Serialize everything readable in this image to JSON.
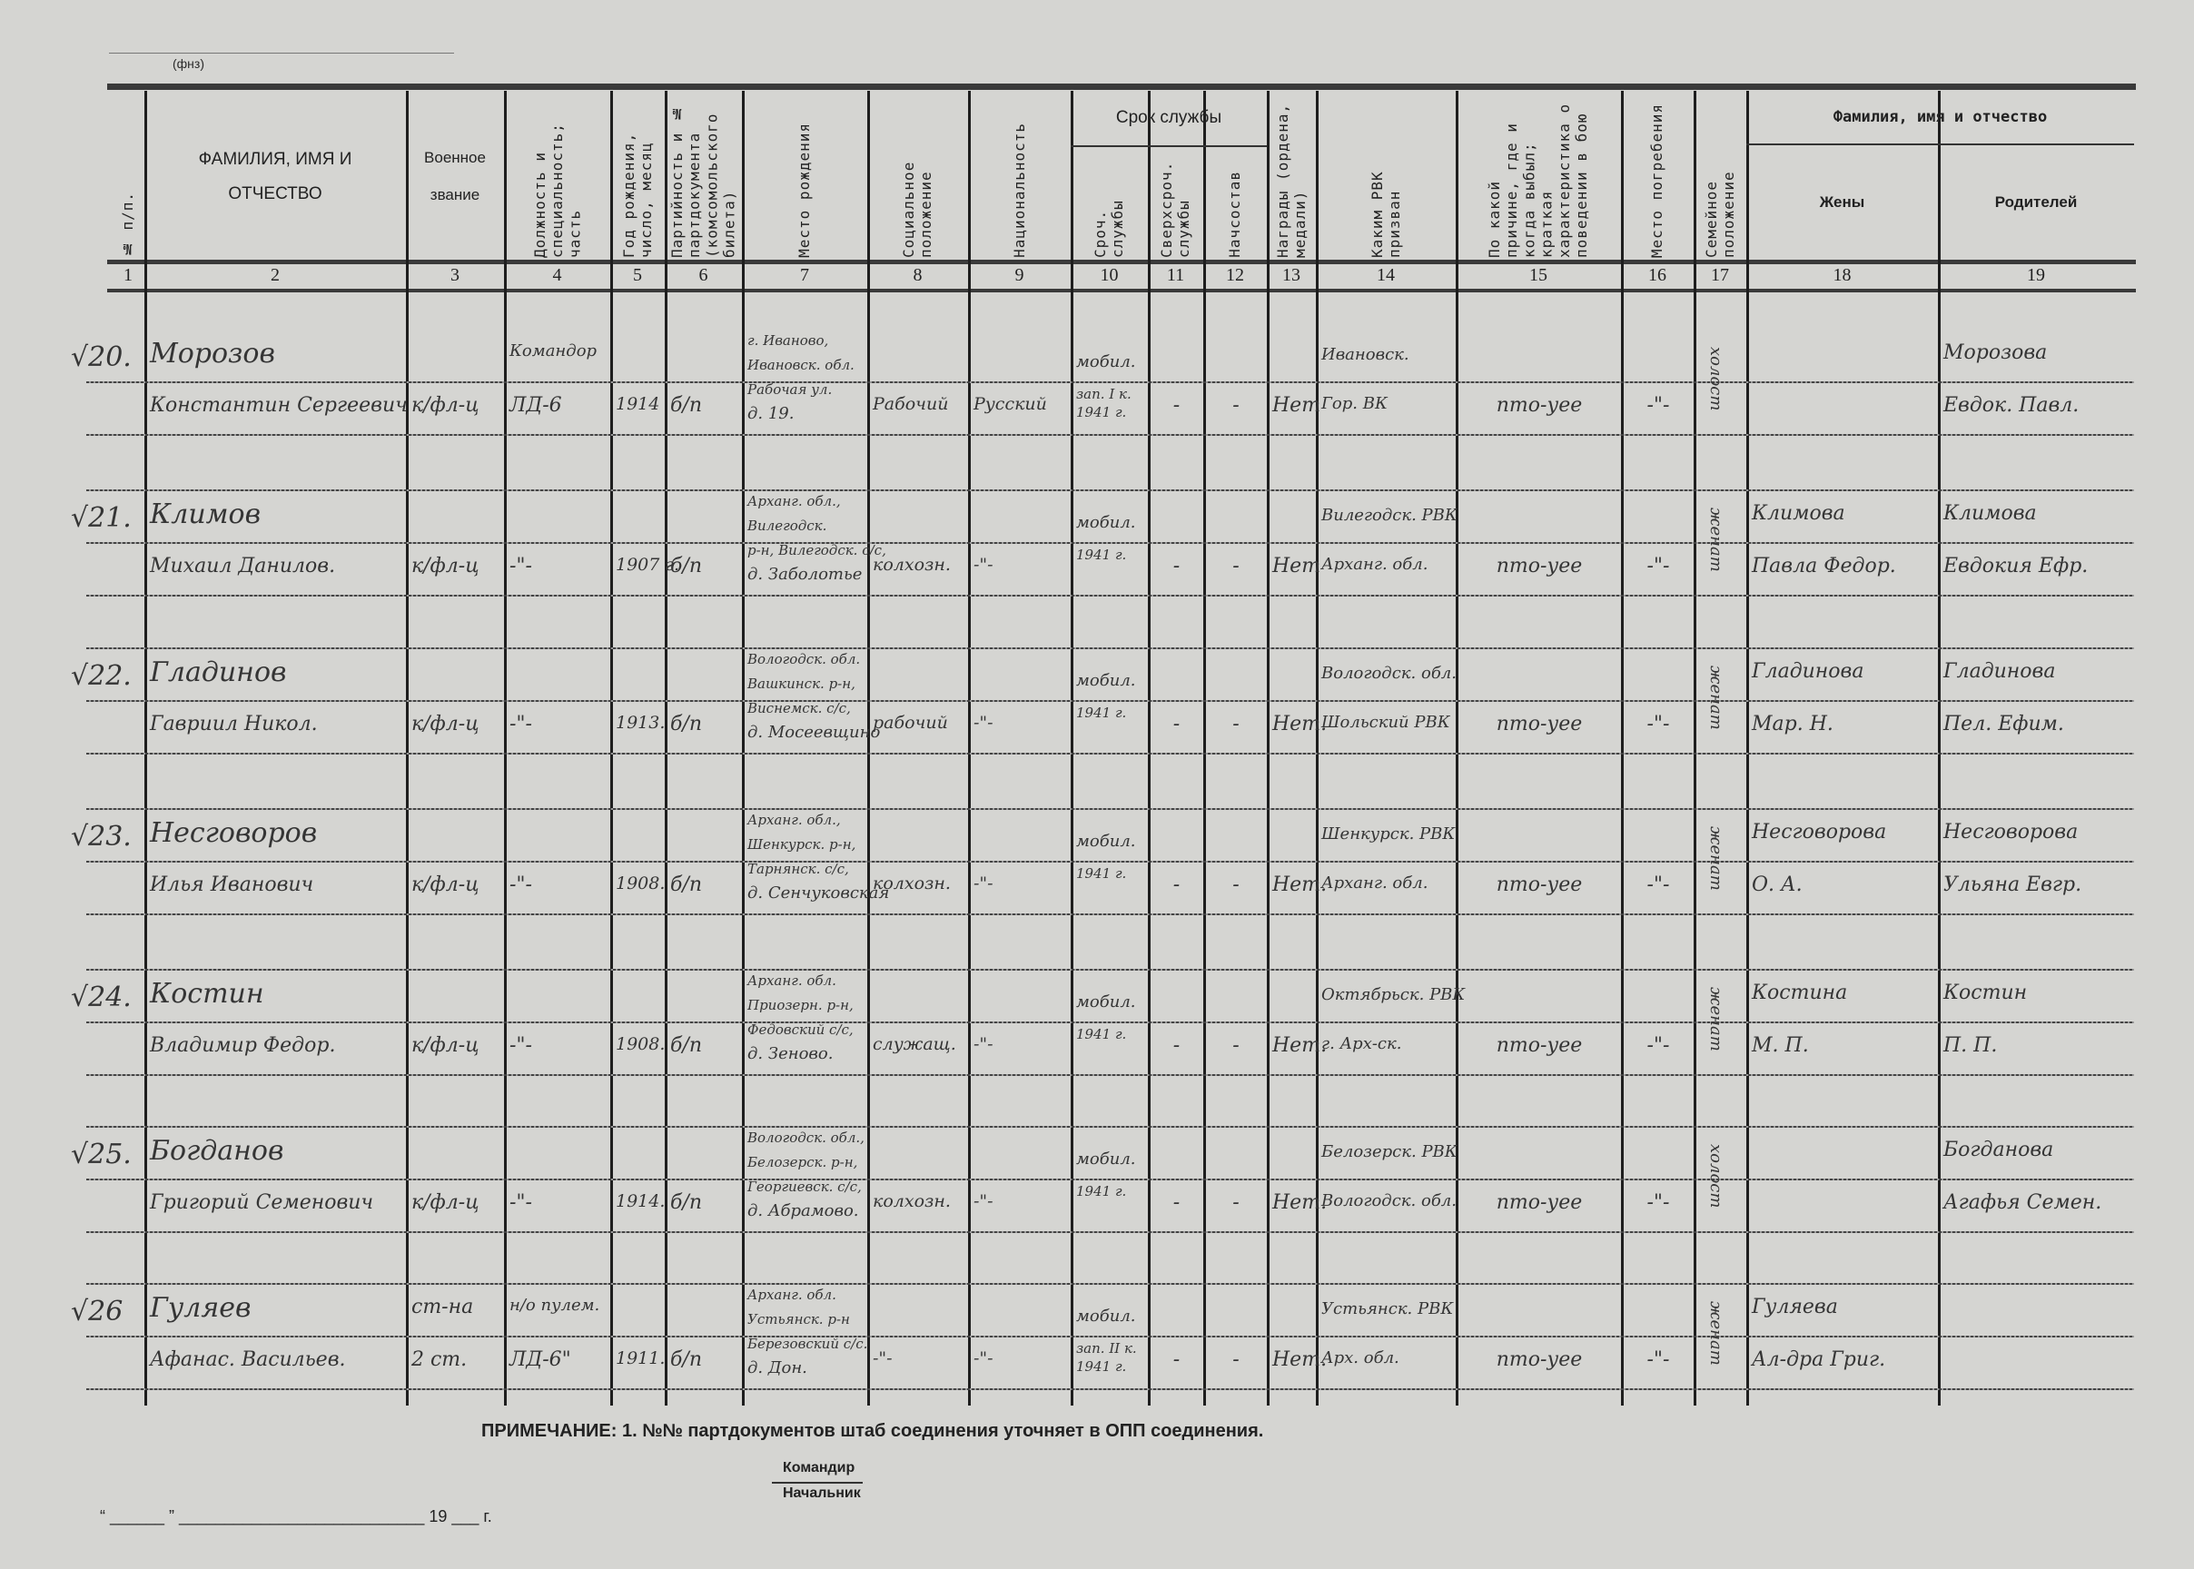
{
  "form": {
    "code": "(фнз)"
  },
  "headers": {
    "c1": "№ п/п.",
    "c2": "ФАМИЛИЯ, ИМЯ И ОТЧЕСТВО",
    "c3": "Военное звание",
    "c4": "Должность и специальность; часть",
    "c5": "Год рождения, число, месяц",
    "c6": "Партийность и № партдокумента (комсомольского билета)",
    "c7": "Место рождения",
    "c8": "Социальное положение",
    "c9": "Национальность",
    "service_group": "Срок службы",
    "c10": "Сроч. службы",
    "c11": "Сверхсроч. службы",
    "c12": "Начсостав",
    "c13": "Награды (ордена, медали)",
    "c14": "Каким РВК призван",
    "c15": "По какой причине, где и когда выбыл; краткая характеристика о поведении в бою",
    "c16": "Место погребения",
    "c17": "Семейное положение",
    "family_group": "Фамилия, имя и отчество",
    "c18": "Жены",
    "c19": "Родителей",
    "numbers": [
      "1",
      "2",
      "3",
      "4",
      "5",
      "6",
      "7",
      "8",
      "9",
      "10",
      "11",
      "12",
      "13",
      "14",
      "15",
      "16",
      "17",
      "18",
      "19"
    ]
  },
  "entries": [
    {
      "num": "√20.",
      "surname": "Морозов",
      "given": "Константин Сергеевич",
      "rank": [
        "",
        "к/фл-ц"
      ],
      "position": [
        "Командор",
        "ЛД-6"
      ],
      "year": "1914",
      "party": "б/п",
      "birthplace": [
        "г. Иваново,",
        "Ивановск. обл.",
        "Рабочая ул.",
        "д. 19."
      ],
      "social": "Рабочий",
      "nationality": "Русский",
      "service": [
        "мобил.",
        "зап. I к. 1941 г."
      ],
      "extended": "-",
      "command": "-",
      "awards": "Нет",
      "rvk": [
        "Ивановск.",
        "Гор. ВК"
      ],
      "reason": "пто-уее",
      "burial": "-\"-",
      "family": "холост",
      "wife": [
        "",
        ""
      ],
      "parents": [
        "Морозова",
        "Евдок. Павл."
      ]
    },
    {
      "num": "√21.",
      "surname": "Климов",
      "given": "Михаил Данилов.",
      "rank": [
        "",
        "к/фл-ц"
      ],
      "position": [
        "",
        "-\"-"
      ],
      "year": "1907 г.",
      "party": "б/п",
      "birthplace": [
        "Арханг. обл.,",
        "Вилегодск.",
        "р-н, Вилегодск. с/с,",
        "д. Заболотье"
      ],
      "social": "колхозн.",
      "nationality": "-\"-",
      "service": [
        "мобил.",
        "1941 г."
      ],
      "extended": "-",
      "command": "-",
      "awards": "Нет",
      "rvk": [
        "Вилегодск. РВК",
        "Арханг. обл."
      ],
      "reason": "пто-уее",
      "burial": "-\"-",
      "family": "женат",
      "wife": [
        "Климова",
        "Павла Федор."
      ],
      "parents": [
        "Климова",
        "Евдокия Ефр."
      ]
    },
    {
      "num": "√22.",
      "surname": "Гладинов",
      "given": "Гавриил Никол.",
      "rank": [
        "",
        "к/фл-ц"
      ],
      "position": [
        "",
        "-\"-"
      ],
      "year": "1913.",
      "party": "б/п",
      "birthplace": [
        "Вологодск. обл.",
        "Вашкинск. р-н,",
        "Виснемск. с/с,",
        "д. Мосеевщино"
      ],
      "social": "рабочий",
      "nationality": "-\"-",
      "service": [
        "мобил.",
        "1941 г."
      ],
      "extended": "-",
      "command": "-",
      "awards": "Нет.",
      "rvk": [
        "Вологодск. обл.",
        "Шольский РВК"
      ],
      "reason": "пто-уее",
      "burial": "-\"-",
      "family": "женат",
      "wife": [
        "Гладинова",
        "Мар. Н."
      ],
      "parents": [
        "Гладинова",
        "Пел. Ефим."
      ]
    },
    {
      "num": "√23.",
      "surname": "Несговоров",
      "given": "Илья Иванович",
      "rank": [
        "",
        "к/фл-ц"
      ],
      "position": [
        "",
        "-\"-"
      ],
      "year": "1908.",
      "party": "б/п",
      "birthplace": [
        "Арханг. обл.,",
        "Шенкурск. р-н,",
        "Тарнянск. с/с,",
        "д. Сенчуковская"
      ],
      "social": "колхозн.",
      "nationality": "-\"-",
      "service": [
        "мобил.",
        "1941 г."
      ],
      "extended": "-",
      "command": "-",
      "awards": "Нет.",
      "rvk": [
        "Шенкурск. РВК",
        "Арханг. обл."
      ],
      "reason": "пто-уее",
      "burial": "-\"-",
      "family": "женат",
      "wife": [
        "Несговорова",
        "О. А."
      ],
      "parents": [
        "Несговорова",
        "Ульяна Евгр."
      ]
    },
    {
      "num": "√24.",
      "surname": "Костин",
      "given": "Владимир Федор.",
      "rank": [
        "",
        "к/фл-ц"
      ],
      "position": [
        "",
        "-\"-"
      ],
      "year": "1908.",
      "party": "б/п",
      "birthplace": [
        "Арханг. обл.",
        "Приозерн. р-н,",
        "Федовский с/с,",
        "д. Зеново."
      ],
      "social": "служащ.",
      "nationality": "-\"-",
      "service": [
        "мобил.",
        "1941 г."
      ],
      "extended": "-",
      "command": "-",
      "awards": "Нет.",
      "rvk": [
        "Октябрьск. РВК",
        "г. Арх-ск."
      ],
      "reason": "пто-уее",
      "burial": "-\"-",
      "family": "женат",
      "wife": [
        "Костина",
        "М. П."
      ],
      "parents": [
        "Костин",
        "П. П."
      ]
    },
    {
      "num": "√25.",
      "surname": "Богданов",
      "given": "Григорий Семенович",
      "rank": [
        "",
        "к/фл-ц"
      ],
      "position": [
        "",
        "-\"-"
      ],
      "year": "1914.",
      "party": "б/п",
      "birthplace": [
        "Вологодск. обл.,",
        "Белозерск. р-н,",
        "Георгиевск. с/с,",
        "д. Абрамово."
      ],
      "social": "колхозн.",
      "nationality": "-\"-",
      "service": [
        "мобил.",
        "1941 г."
      ],
      "extended": "-",
      "command": "-",
      "awards": "Нет.",
      "rvk": [
        "Белозерск. РВК",
        "Вологодск. обл."
      ],
      "reason": "пто-уее",
      "burial": "-\"-",
      "family": "холост",
      "wife": [
        "",
        ""
      ],
      "parents": [
        "Богданова",
        "Агафья Семен."
      ]
    },
    {
      "num": "√26",
      "surname": "Гуляев",
      "given": "Афанас. Васильев.",
      "rank": [
        "ст-на",
        "2 ст."
      ],
      "position": [
        "н/о пулем.",
        "ЛД-6\""
      ],
      "year": "1911.",
      "party": "б/п",
      "birthplace": [
        "Арханг. обл.",
        "Устьянск. р-н",
        "Березовский с/с.",
        "д. Дон."
      ],
      "social": "-\"-",
      "nationality": "-\"-",
      "service": [
        "мобил.",
        "зап. II к. 1941 г."
      ],
      "extended": "-",
      "command": "-",
      "awards": "Нет.",
      "rvk": [
        "Устьянск. РВК",
        "Арх. обл."
      ],
      "reason": "пто-уее",
      "burial": "-\"-",
      "family": "женат",
      "wife": [
        "Гуляева",
        "Ал-дра Григ."
      ],
      "parents": [
        "",
        ""
      ]
    }
  ],
  "footer": {
    "note": "ПРИМЕЧАНИЕ: 1. №№ партдокументов штаб соединения уточняет в ОПП соединения.",
    "commander": "Командир",
    "chief": "Начальник",
    "date_line": "“ ______ ” ___________________________ 19 ___ г."
  }
}
